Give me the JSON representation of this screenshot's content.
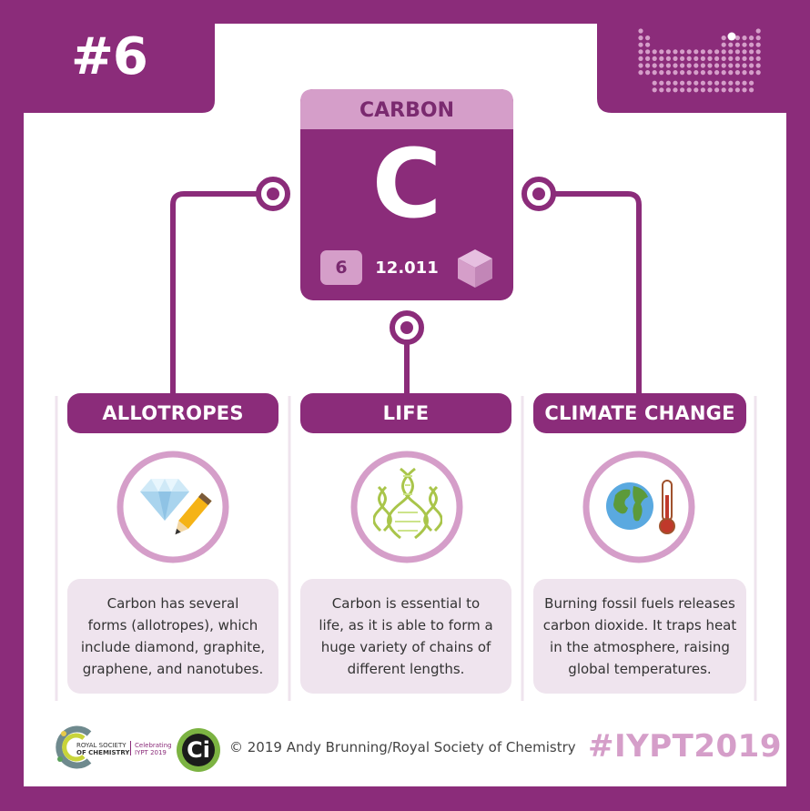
{
  "number_badge": "#6",
  "element": {
    "name": "CARBON",
    "symbol": "C",
    "atomic_number": "6",
    "atomic_mass": "12.011",
    "state_icon": "cube-solid-icon"
  },
  "sections": [
    {
      "title": "ALLOTROPES",
      "icon": "diamond-pencil-icon",
      "text_lines": [
        "Carbon has several",
        "forms (allotropes), which",
        "include diamond, graphite,",
        "graphene, and nanotubes."
      ]
    },
    {
      "title": "LIFE",
      "icon": "dna-icon",
      "text_lines": [
        "Carbon is essential to",
        "life, as it is able to form a",
        "huge variety of chains of",
        "different lengths."
      ]
    },
    {
      "title": "CLIMATE CHANGE",
      "icon": "earth-thermometer-icon",
      "text_lines": [
        "Burning fossil fuels releases",
        "carbon dioxide. It traps heat",
        "in the atmosphere, raising",
        "global temperatures."
      ]
    }
  ],
  "footer": {
    "rsc_logo_lines": [
      "ROYAL SOCIETY",
      "OF CHEMISTRY"
    ],
    "celebrating_lines": [
      "Celebrating",
      "IYPT 2019"
    ],
    "ci_logo": "Ci",
    "copyright": "© 2019 Andy Brunning/Royal Society of Chemistry",
    "hashtag": "#IYPT2019"
  },
  "colors": {
    "primary": "#8b2c7a",
    "light": "#d59ec9",
    "pale": "#efe4ee"
  }
}
